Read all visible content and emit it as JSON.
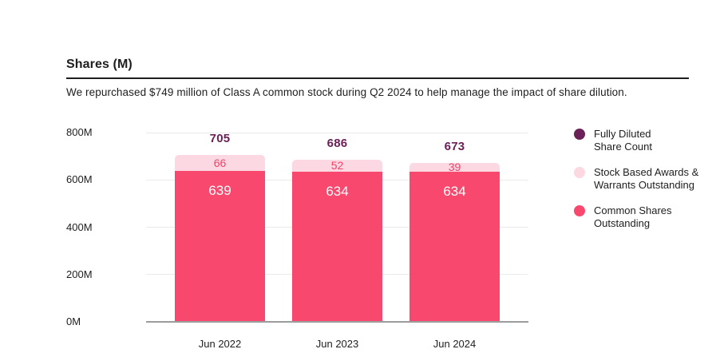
{
  "header": {
    "title": "Shares (M)",
    "subtitle": "We repurchased $749 million of Class A common stock during Q2 2024 to help manage the impact of share dilution."
  },
  "colors": {
    "common_shares_pink": "#F9486D",
    "stock_awards_light_pink": "#FCD9E2",
    "fully_diluted_plum": "#6B2058",
    "segment_number_pink": "#F4416B",
    "gridline": "#EBEBEB",
    "axis_baseline": "#9C9C9C",
    "text": "#1E1E1E"
  },
  "chart_data": {
    "type": "bar",
    "stacked": true,
    "title": "Shares (M)",
    "subtitle": "We repurchased $749 million of Class A common stock during Q2 2024 to help manage the impact of share dilution.",
    "categories": [
      "Jun 2022",
      "Jun 2023",
      "Jun 2024"
    ],
    "series": [
      {
        "name": "Common Shares Outstanding",
        "values": [
          639,
          634,
          634
        ],
        "color": "#F9486D",
        "label_color": "#FFFFFF"
      },
      {
        "name": "Stock Based Awards & Warrants Outstanding",
        "values": [
          66,
          52,
          39
        ],
        "color": "#FCD9E2",
        "label_color": "#F4416B"
      }
    ],
    "totals": {
      "name": "Fully Diluted Share Count",
      "values": [
        705,
        686,
        673
      ],
      "label_color": "#6B2058"
    },
    "xlabel": "",
    "ylabel": "Shares (M)",
    "ylim": [
      0,
      800
    ],
    "ytick_values": [
      0,
      200,
      400,
      600,
      800
    ],
    "ytick_labels": [
      "0M",
      "200M",
      "400M",
      "600M",
      "800M"
    ],
    "grid": true,
    "legend_position": "right"
  },
  "legend": {
    "items": [
      {
        "label": "Fully Diluted\nShare Count",
        "color": "#6B2058",
        "swatch": "circle"
      },
      {
        "label": "Stock Based Awards &\nWarrants Outstanding",
        "color": "#FCD9E2",
        "swatch": "circle"
      },
      {
        "label": "Common Shares\nOutstanding",
        "color": "#F9486D",
        "swatch": "circle"
      }
    ]
  }
}
